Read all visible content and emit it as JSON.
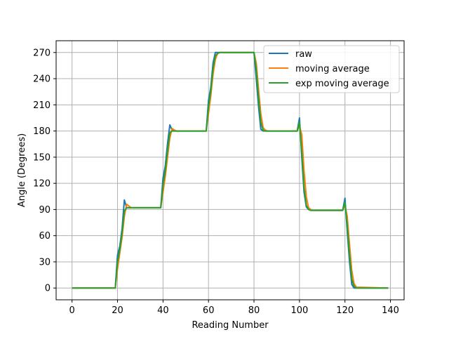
{
  "chart_data": {
    "type": "line",
    "title": "",
    "xlabel": "Reading Number",
    "ylabel": "Angle (Degrees)",
    "xlim": [
      -7,
      146
    ],
    "ylim": [
      -13.5,
      283.5
    ],
    "xticks": [
      0,
      20,
      40,
      60,
      80,
      100,
      120,
      140
    ],
    "yticks": [
      0,
      30,
      60,
      90,
      120,
      150,
      180,
      210,
      240,
      270
    ],
    "grid": true,
    "legend_position": "top-right",
    "series": [
      {
        "name": "raw",
        "color": "#1f77b4",
        "x": [
          0,
          19,
          20,
          21,
          22,
          23,
          24,
          25,
          39,
          40,
          41,
          42,
          43,
          44,
          45,
          59,
          60,
          61,
          62,
          63,
          64,
          65,
          80,
          81,
          82,
          83,
          84,
          85,
          99,
          100,
          101,
          102,
          103,
          104,
          105,
          119,
          120,
          121,
          122,
          123,
          124,
          125,
          139
        ],
        "y": [
          0,
          0,
          38,
          48,
          68,
          101,
          92,
          92,
          92,
          126,
          140,
          166,
          187,
          181,
          180,
          180,
          215,
          230,
          258,
          270,
          270,
          270,
          270,
          240,
          208,
          182,
          180,
          180,
          180,
          195,
          150,
          110,
          93,
          90,
          89,
          89,
          103,
          65,
          30,
          4,
          0,
          0,
          0
        ]
      },
      {
        "name": "moving average",
        "color": "#ff7f0e",
        "x": [
          0,
          19,
          20,
          21,
          22,
          23,
          24,
          25,
          26,
          39,
          40,
          41,
          42,
          43,
          44,
          45,
          46,
          59,
          60,
          61,
          62,
          63,
          64,
          65,
          80,
          81,
          82,
          83,
          84,
          85,
          86,
          99,
          100,
          101,
          102,
          103,
          104,
          105,
          106,
          119,
          120,
          121,
          122,
          123,
          124,
          125,
          139
        ],
        "y": [
          0,
          0,
          22,
          40,
          58,
          82,
          96,
          94,
          92,
          92,
          110,
          128,
          150,
          172,
          183,
          181,
          180,
          180,
          200,
          220,
          245,
          262,
          269,
          270,
          270,
          258,
          228,
          200,
          184,
          181,
          180,
          180,
          186,
          176,
          135,
          105,
          92,
          90,
          89,
          89,
          95,
          82,
          50,
          20,
          5,
          1,
          0
        ]
      },
      {
        "name": "exp moving average",
        "color": "#2ca02c",
        "x": [
          0,
          19,
          20,
          21,
          22,
          23,
          24,
          25,
          39,
          40,
          41,
          42,
          43,
          44,
          45,
          59,
          60,
          61,
          62,
          63,
          64,
          65,
          66,
          80,
          81,
          82,
          83,
          84,
          85,
          99,
          100,
          101,
          102,
          103,
          104,
          105,
          119,
          120,
          121,
          122,
          123,
          124,
          125,
          139
        ],
        "y": [
          0,
          0,
          30,
          44,
          63,
          88,
          92,
          92,
          92,
          118,
          134,
          158,
          178,
          180,
          180,
          180,
          208,
          226,
          252,
          266,
          269,
          270,
          270,
          270,
          250,
          218,
          190,
          181,
          180,
          180,
          190,
          156,
          115,
          95,
          90,
          89,
          89,
          98,
          72,
          38,
          10,
          2,
          0,
          0
        ]
      }
    ]
  }
}
